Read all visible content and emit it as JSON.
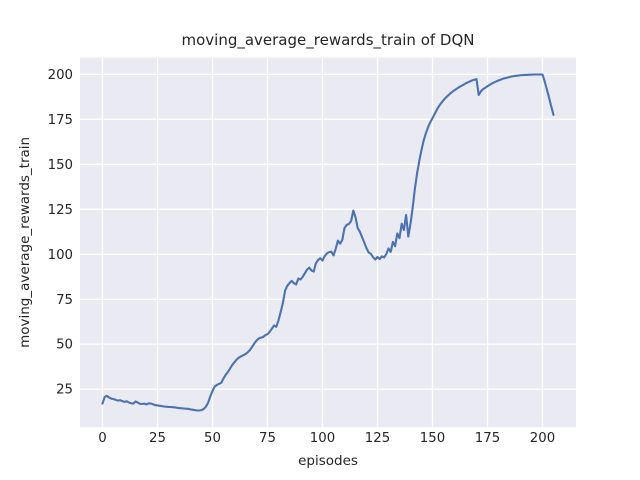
{
  "chart_data": {
    "type": "line",
    "title": "moving_average_rewards_train of DQN",
    "xlabel": "episodes",
    "ylabel": "moving_average_rewards_train",
    "legend_position": "none",
    "grid": true,
    "style": "seaborn-darkgrid",
    "x_ticks": [
      0,
      25,
      50,
      75,
      100,
      125,
      150,
      175,
      200
    ],
    "y_ticks": [
      25,
      50,
      75,
      100,
      125,
      150,
      175,
      200
    ],
    "xlim": [
      -10.25,
      215.25
    ],
    "ylim": [
      3.9,
      209.3
    ],
    "colors": {
      "figure_background": "#ffffff",
      "plot_background": "#eaeaf2",
      "grid": "#ffffff",
      "line": "#4c72b0",
      "text": "#262626"
    },
    "series": [
      {
        "name": "moving_average_rewards_train",
        "color": "#4c72b0",
        "points": [
          [
            0,
            17.0
          ],
          [
            1,
            20.8
          ],
          [
            2,
            21.3
          ],
          [
            3,
            20.4
          ],
          [
            4,
            19.8
          ],
          [
            5,
            19.5
          ],
          [
            6,
            19.1
          ],
          [
            7,
            18.7
          ],
          [
            8,
            18.9
          ],
          [
            9,
            18.4
          ],
          [
            10,
            18.0
          ],
          [
            11,
            18.3
          ],
          [
            12,
            17.6
          ],
          [
            13,
            17.2
          ],
          [
            14,
            17.0
          ],
          [
            15,
            18.2
          ],
          [
            16,
            17.6
          ],
          [
            17,
            16.9
          ],
          [
            18,
            16.8
          ],
          [
            19,
            17.0
          ],
          [
            20,
            16.5
          ],
          [
            21,
            17.2
          ],
          [
            22,
            17.0
          ],
          [
            23,
            16.6
          ],
          [
            24,
            16.2
          ],
          [
            25,
            16.0
          ],
          [
            26,
            15.8
          ],
          [
            27,
            15.6
          ],
          [
            28,
            15.4
          ],
          [
            29,
            15.3
          ],
          [
            30,
            15.2
          ],
          [
            31,
            15.1
          ],
          [
            32,
            15.0
          ],
          [
            33,
            14.9
          ],
          [
            34,
            14.7
          ],
          [
            35,
            14.5
          ],
          [
            36,
            14.4
          ],
          [
            37,
            14.3
          ],
          [
            38,
            14.2
          ],
          [
            39,
            14.1
          ],
          [
            40,
            13.8
          ],
          [
            41,
            13.6
          ],
          [
            42,
            13.4
          ],
          [
            43,
            13.2
          ],
          [
            44,
            13.2
          ],
          [
            45,
            13.4
          ],
          [
            46,
            14.0
          ],
          [
            47,
            15.3
          ],
          [
            48,
            17.5
          ],
          [
            49,
            21.0
          ],
          [
            50,
            24.0
          ],
          [
            51,
            26.5
          ],
          [
            52,
            27.4
          ],
          [
            53,
            28.0
          ],
          [
            54,
            28.6
          ],
          [
            55,
            31.0
          ],
          [
            56,
            33.0
          ],
          [
            57,
            34.6
          ],
          [
            58,
            36.5
          ],
          [
            59,
            38.5
          ],
          [
            60,
            40.0
          ],
          [
            61,
            41.5
          ],
          [
            62,
            42.6
          ],
          [
            63,
            43.3
          ],
          [
            64,
            43.9
          ],
          [
            65,
            44.5
          ],
          [
            66,
            45.5
          ],
          [
            67,
            46.8
          ],
          [
            68,
            48.5
          ],
          [
            69,
            50.4
          ],
          [
            70,
            52.0
          ],
          [
            71,
            53.2
          ],
          [
            72,
            53.7
          ],
          [
            73,
            54.0
          ],
          [
            74,
            55.0
          ],
          [
            75,
            55.6
          ],
          [
            76,
            56.9
          ],
          [
            77,
            58.7
          ],
          [
            78,
            60.4
          ],
          [
            79,
            59.7
          ],
          [
            80,
            63.3
          ],
          [
            81,
            68.0
          ],
          [
            82,
            73.0
          ],
          [
            83,
            79.8
          ],
          [
            84,
            82.5
          ],
          [
            85,
            84.0
          ],
          [
            86,
            85.2
          ],
          [
            87,
            84.0
          ],
          [
            88,
            83.2
          ],
          [
            89,
            86.5
          ],
          [
            90,
            86.0
          ],
          [
            91,
            87.5
          ],
          [
            92,
            89.5
          ],
          [
            93,
            91.5
          ],
          [
            94,
            92.6
          ],
          [
            95,
            91.0
          ],
          [
            96,
            90.4
          ],
          [
            97,
            95.0
          ],
          [
            98,
            96.8
          ],
          [
            99,
            97.8
          ],
          [
            100,
            96.5
          ],
          [
            101,
            99.0
          ],
          [
            102,
            100.5
          ],
          [
            103,
            101.2
          ],
          [
            104,
            101.5
          ],
          [
            105,
            99.4
          ],
          [
            106,
            103.0
          ],
          [
            107,
            107.6
          ],
          [
            108,
            105.9
          ],
          [
            109,
            108.0
          ],
          [
            110,
            114.6
          ],
          [
            111,
            116.3
          ],
          [
            112,
            116.8
          ],
          [
            113,
            118.5
          ],
          [
            114,
            124.3
          ],
          [
            115,
            120.6
          ],
          [
            116,
            114.6
          ],
          [
            117,
            112.5
          ],
          [
            118,
            109.5
          ],
          [
            119,
            106.5
          ],
          [
            120,
            103.4
          ],
          [
            121,
            101.0
          ],
          [
            122,
            100.2
          ],
          [
            123,
            98.4
          ],
          [
            124,
            97.1
          ],
          [
            125,
            98.5
          ],
          [
            126,
            97.3
          ],
          [
            127,
            98.9
          ],
          [
            128,
            98.2
          ],
          [
            129,
            100.1
          ],
          [
            130,
            103.2
          ],
          [
            131,
            101.3
          ],
          [
            132,
            106.9
          ],
          [
            133,
            104.5
          ],
          [
            134,
            111.6
          ],
          [
            135,
            109.0
          ],
          [
            136,
            117.0
          ],
          [
            137,
            113.5
          ],
          [
            138,
            121.8
          ],
          [
            139,
            109.8
          ],
          [
            140,
            117.0
          ],
          [
            141,
            126.0
          ],
          [
            142,
            136.5
          ],
          [
            143,
            145.0
          ],
          [
            144,
            152.0
          ],
          [
            145,
            158.0
          ],
          [
            146,
            163.3
          ],
          [
            147,
            167.3
          ],
          [
            148,
            170.7
          ],
          [
            149,
            173.4
          ],
          [
            150,
            175.7
          ],
          [
            151,
            178.0
          ],
          [
            152,
            180.4
          ],
          [
            153,
            182.4
          ],
          [
            154,
            184.1
          ],
          [
            155,
            185.6
          ],
          [
            156,
            187.0
          ],
          [
            157,
            188.2
          ],
          [
            158,
            189.3
          ],
          [
            159,
            190.3
          ],
          [
            160,
            191.2
          ],
          [
            161,
            192.0
          ],
          [
            162,
            192.8
          ],
          [
            163,
            193.5
          ],
          [
            164,
            194.2
          ],
          [
            165,
            194.9
          ],
          [
            166,
            195.5
          ],
          [
            167,
            196.1
          ],
          [
            168,
            196.6
          ],
          [
            169,
            197.0
          ],
          [
            170,
            197.3
          ],
          [
            171,
            188.5
          ],
          [
            172,
            190.5
          ],
          [
            173,
            191.8
          ],
          [
            174,
            192.6
          ],
          [
            175,
            193.4
          ],
          [
            176,
            194.2
          ],
          [
            177,
            194.9
          ],
          [
            178,
            195.5
          ],
          [
            179,
            196.1
          ],
          [
            180,
            196.6
          ],
          [
            181,
            197.1
          ],
          [
            182,
            197.5
          ],
          [
            183,
            197.9
          ],
          [
            184,
            198.2
          ],
          [
            185,
            198.5
          ],
          [
            186,
            198.8
          ],
          [
            187,
            199.0
          ],
          [
            188,
            199.2
          ],
          [
            189,
            199.3
          ],
          [
            190,
            199.5
          ],
          [
            191,
            199.6
          ],
          [
            192,
            199.7
          ],
          [
            193,
            199.7
          ],
          [
            194,
            199.8
          ],
          [
            195,
            199.8
          ],
          [
            196,
            199.9
          ],
          [
            197,
            199.9
          ],
          [
            198,
            199.9
          ],
          [
            199,
            199.9
          ],
          [
            200,
            199.9
          ],
          [
            201,
            196.0
          ],
          [
            202,
            191.5
          ],
          [
            203,
            187.0
          ],
          [
            204,
            182.0
          ],
          [
            205,
            177.5
          ]
        ]
      }
    ]
  }
}
